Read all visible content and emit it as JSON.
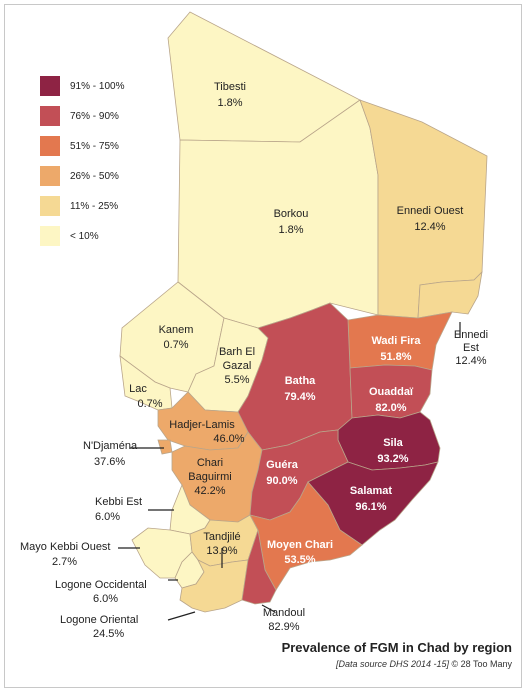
{
  "title": "Prevalence of FGM in Chad by region",
  "source_italic": "[Data source DHS 2014 -15]",
  "source_rest": " © 28 Too Many",
  "legend": [
    {
      "label": "91% - 100%",
      "color": "#8e2344"
    },
    {
      "label": "76% - 90%",
      "color": "#c24f56"
    },
    {
      "label": "51% - 75%",
      "color": "#e3784f"
    },
    {
      "label": "26% - 50%",
      "color": "#eda96a"
    },
    {
      "label": "11% - 25%",
      "color": "#f5d994"
    },
    {
      "label": "< 10%",
      "color": "#fdf6c4"
    }
  ],
  "regions": {
    "tibesti": {
      "name": "Tibesti",
      "value": "1.8%",
      "color": "#fdf6c4"
    },
    "borkou": {
      "name": "Borkou",
      "value": "1.8%",
      "color": "#fdf6c4"
    },
    "ennedi_ouest": {
      "name": "Ennedi Ouest",
      "value": "12.4%",
      "color": "#f5d994"
    },
    "ennedi_est": {
      "name1": "Ennedi",
      "name2": "Est",
      "value": "12.4%",
      "color": "#f5d994"
    },
    "kanem": {
      "name": "Kanem",
      "value": "0.7%",
      "color": "#fdf6c4"
    },
    "barh_el_gazal": {
      "name1": "Barh El",
      "name2": "Gazal",
      "value": "5.5%",
      "color": "#fdf6c4"
    },
    "lac": {
      "name": "Lac",
      "value": "0.7%",
      "color": "#fdf6c4"
    },
    "wadi_fira": {
      "name": "Wadi Fira",
      "value": "51.8%",
      "color": "#e3784f"
    },
    "batha": {
      "name": "Batha",
      "value": "79.4%",
      "color": "#c24f56"
    },
    "ouaddai": {
      "name": "Ouaddaï",
      "value": "82.0%",
      "color": "#c24f56"
    },
    "hadjer_lamis": {
      "name": "Hadjer-Lamis",
      "value": "46.0%",
      "color": "#eda96a"
    },
    "ndjamena": {
      "name": "N'Djaména",
      "value": "37.6%",
      "color": "#eda96a"
    },
    "sila": {
      "name": "Sila",
      "value": "93.2%",
      "color": "#8e2344"
    },
    "chari_baguirmi": {
      "name1": "Chari",
      "name2": "Baguirmi",
      "value": "42.2%",
      "color": "#eda96a"
    },
    "guera": {
      "name": "Guéra",
      "value": "90.0%",
      "color": "#c24f56"
    },
    "salamat": {
      "name": "Salamat",
      "value": "96.1%",
      "color": "#8e2344"
    },
    "kebbi_est": {
      "name": "Kebbi Est",
      "value": "6.0%",
      "color": "#fdf6c4"
    },
    "mayo_kebbi_ouest": {
      "name": "Mayo Kebbi Ouest",
      "value": "2.7%",
      "color": "#fdf6c4"
    },
    "tandjile": {
      "name": "Tandjilé",
      "value": "13.9%",
      "color": "#f5d994"
    },
    "moyen_chari": {
      "name": "Moyen Chari",
      "value": "53.5%",
      "color": "#e3784f"
    },
    "logone_occidental": {
      "name": "Logone Occidental",
      "value": "6.0%",
      "color": "#fdf6c4"
    },
    "logone_oriental": {
      "name": "Logone Oriental",
      "value": "24.5%",
      "color": "#f5d994"
    },
    "mandoul": {
      "name": "Mandoul",
      "value": "82.9%",
      "color": "#c24f56"
    }
  }
}
